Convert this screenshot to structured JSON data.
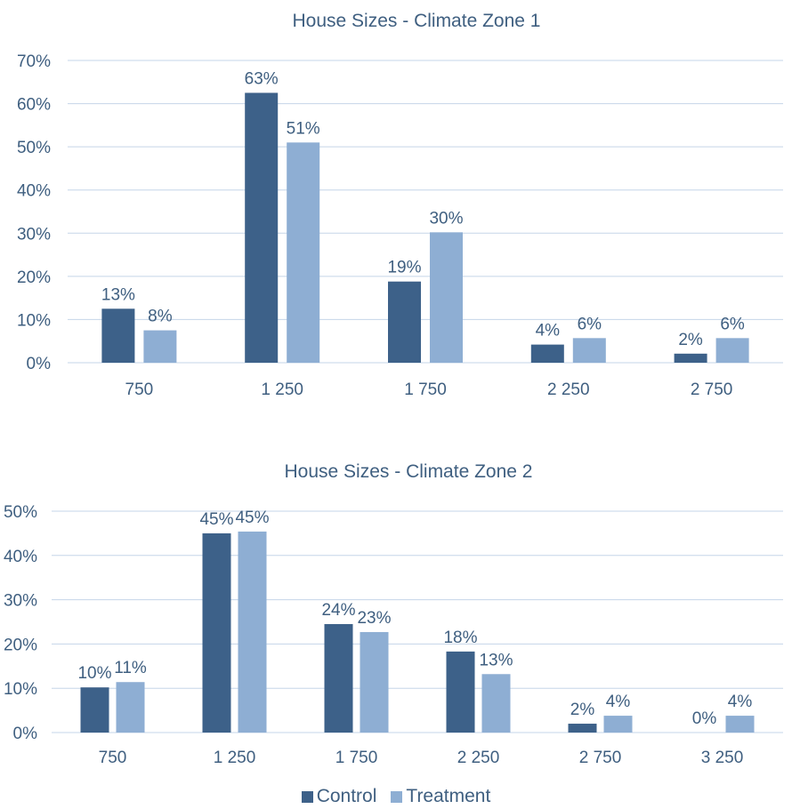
{
  "colors": {
    "control": "#3d6189",
    "treatment": "#8eaed3",
    "text": "#3f5f80",
    "grid": "#c5d5e8"
  },
  "legend": {
    "control": "Control",
    "treatment": "Treatment"
  },
  "chart_data": [
    {
      "type": "bar",
      "title": "House Sizes - Climate Zone 1",
      "categories": [
        "750",
        "1 250",
        "1 750",
        "2 250",
        "2 750"
      ],
      "series": [
        {
          "name": "Control",
          "values": [
            12.5,
            62.5,
            18.8,
            4.2,
            2.1
          ],
          "labels": [
            "13%",
            "63%",
            "19%",
            "4%",
            "2%"
          ]
        },
        {
          "name": "Treatment",
          "values": [
            7.5,
            51.0,
            30.2,
            5.7,
            5.7
          ],
          "labels": [
            "8%",
            "51%",
            "30%",
            "6%",
            "6%"
          ]
        }
      ],
      "yticks": [
        "0%",
        "10%",
        "20%",
        "30%",
        "40%",
        "50%",
        "60%",
        "70%"
      ],
      "ylim": [
        0,
        70
      ],
      "xlabel": "",
      "ylabel": "",
      "grid": true
    },
    {
      "type": "bar",
      "title": "House Sizes - Climate Zone 2",
      "categories": [
        "750",
        "1 250",
        "1 750",
        "2 250",
        "2 750",
        "3 250"
      ],
      "series": [
        {
          "name": "Control",
          "values": [
            10.2,
            45.0,
            24.5,
            18.3,
            2.0,
            0.0
          ],
          "labels": [
            "10%",
            "45%",
            "24%",
            "18%",
            "2%",
            "0%"
          ]
        },
        {
          "name": "Treatment",
          "values": [
            11.4,
            45.4,
            22.7,
            13.2,
            3.8,
            3.8
          ],
          "labels": [
            "11%",
            "45%",
            "23%",
            "13%",
            "4%",
            "4%"
          ]
        }
      ],
      "yticks": [
        "0%",
        "10%",
        "20%",
        "30%",
        "40%",
        "50%"
      ],
      "ylim": [
        0,
        50
      ],
      "xlabel": "",
      "ylabel": "",
      "grid": true,
      "legend_position": "bottom"
    }
  ]
}
